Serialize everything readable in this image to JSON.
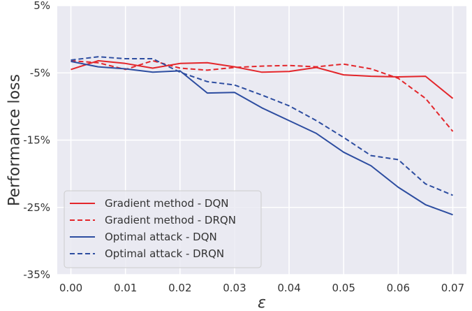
{
  "chart_data": {
    "type": "line",
    "title": "",
    "xlabel": "ε",
    "ylabel": "Performance loss",
    "xlim": [
      -0.0025,
      0.0725
    ],
    "ylim": [
      -35,
      5
    ],
    "xticks": [
      0.0,
      0.01,
      0.02,
      0.03,
      0.04,
      0.05,
      0.06,
      0.07
    ],
    "xtick_labels": [
      "0.00",
      "0.01",
      "0.02",
      "0.03",
      "0.04",
      "0.05",
      "0.06",
      "0.07"
    ],
    "yticks": [
      5,
      -5,
      -15,
      -25,
      -35
    ],
    "ytick_labels": [
      "5%",
      "-5%",
      "-15%",
      "-25%",
      "-35%"
    ],
    "grid": true,
    "legend_position": "lower-left",
    "x": [
      0.0,
      0.005,
      0.01,
      0.015,
      0.02,
      0.025,
      0.03,
      0.035,
      0.04,
      0.045,
      0.05,
      0.055,
      0.06,
      0.065,
      0.07
    ],
    "series": [
      {
        "name": "Gradient method - DQN",
        "color": "#e3262b",
        "dash": "solid",
        "values": [
          -4.5,
          -3.2,
          -3.6,
          -4.3,
          -3.6,
          -3.5,
          -4.1,
          -4.9,
          -4.8,
          -4.2,
          -5.3,
          -5.5,
          -5.6,
          -5.5,
          -8.8
        ]
      },
      {
        "name": "Gradient method - DRQN",
        "color": "#e3262b",
        "dash": "dashed",
        "values": [
          -3.2,
          -3.5,
          -4.5,
          -3.2,
          -4.3,
          -4.6,
          -4.2,
          -4.0,
          -3.9,
          -4.1,
          -3.7,
          -4.4,
          -5.8,
          -8.8,
          -13.7
        ]
      },
      {
        "name": "Optimal attack - DQN",
        "color": "#2d4da0",
        "dash": "solid",
        "values": [
          -3.3,
          -4.1,
          -4.4,
          -4.9,
          -4.7,
          -8.0,
          -7.9,
          -10.2,
          -12.1,
          -14.0,
          -16.8,
          -18.8,
          -22.0,
          -24.6,
          -26.1
        ]
      },
      {
        "name": "Optimal attack - DRQN",
        "color": "#2d4da0",
        "dash": "dashed",
        "values": [
          -3.1,
          -2.6,
          -2.9,
          -2.9,
          -4.9,
          -6.3,
          -6.8,
          -8.3,
          -9.9,
          -12.1,
          -14.6,
          -17.3,
          -17.9,
          -21.5,
          -23.2
        ]
      }
    ]
  }
}
